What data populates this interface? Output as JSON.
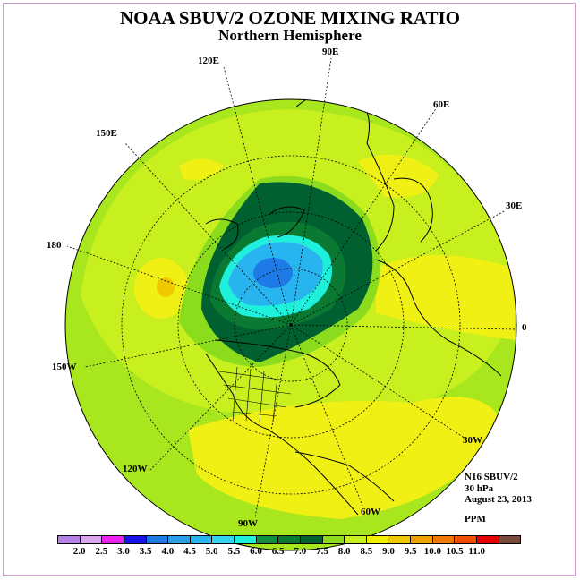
{
  "title": "NOAA SBUV/2 OZONE MIXING RATIO",
  "subtitle": "Northern Hemisphere",
  "longitude_labels": [
    "90E",
    "60E",
    "30E",
    "0",
    "30W",
    "60W",
    "90W",
    "120W",
    "150W",
    "180",
    "150E",
    "120E"
  ],
  "info": {
    "instrument": "N16 SBUV/2",
    "level": "30 hPa",
    "date": "August 23, 2013"
  },
  "units": "PPM",
  "colorbar": {
    "ticks": [
      "2.0",
      "2.5",
      "3.0",
      "3.5",
      "4.0",
      "4.5",
      "5.0",
      "5.5",
      "6.0",
      "6.5",
      "7.0",
      "7.5",
      "8.0",
      "8.5",
      "9.0",
      "9.5",
      "10.0",
      "10.5",
      "11.0"
    ],
    "colors": [
      "#b57ee8",
      "#d9a6ee",
      "#ee22ee",
      "#1414e6",
      "#1e7ae6",
      "#2a9ee8",
      "#28b4ee",
      "#32d2f0",
      "#1ef0dc",
      "#109040",
      "#0a7a32",
      "#006030",
      "#8cdc1e",
      "#c8f01e",
      "#f0f000",
      "#f0c800",
      "#f0a000",
      "#f07800",
      "#f05000",
      "#e60000",
      "#7a4a3a"
    ]
  },
  "colors": {
    "ocean_base": "#a8e61e",
    "high_band": "#f0f014",
    "low_core": "#1e7ae6"
  }
}
